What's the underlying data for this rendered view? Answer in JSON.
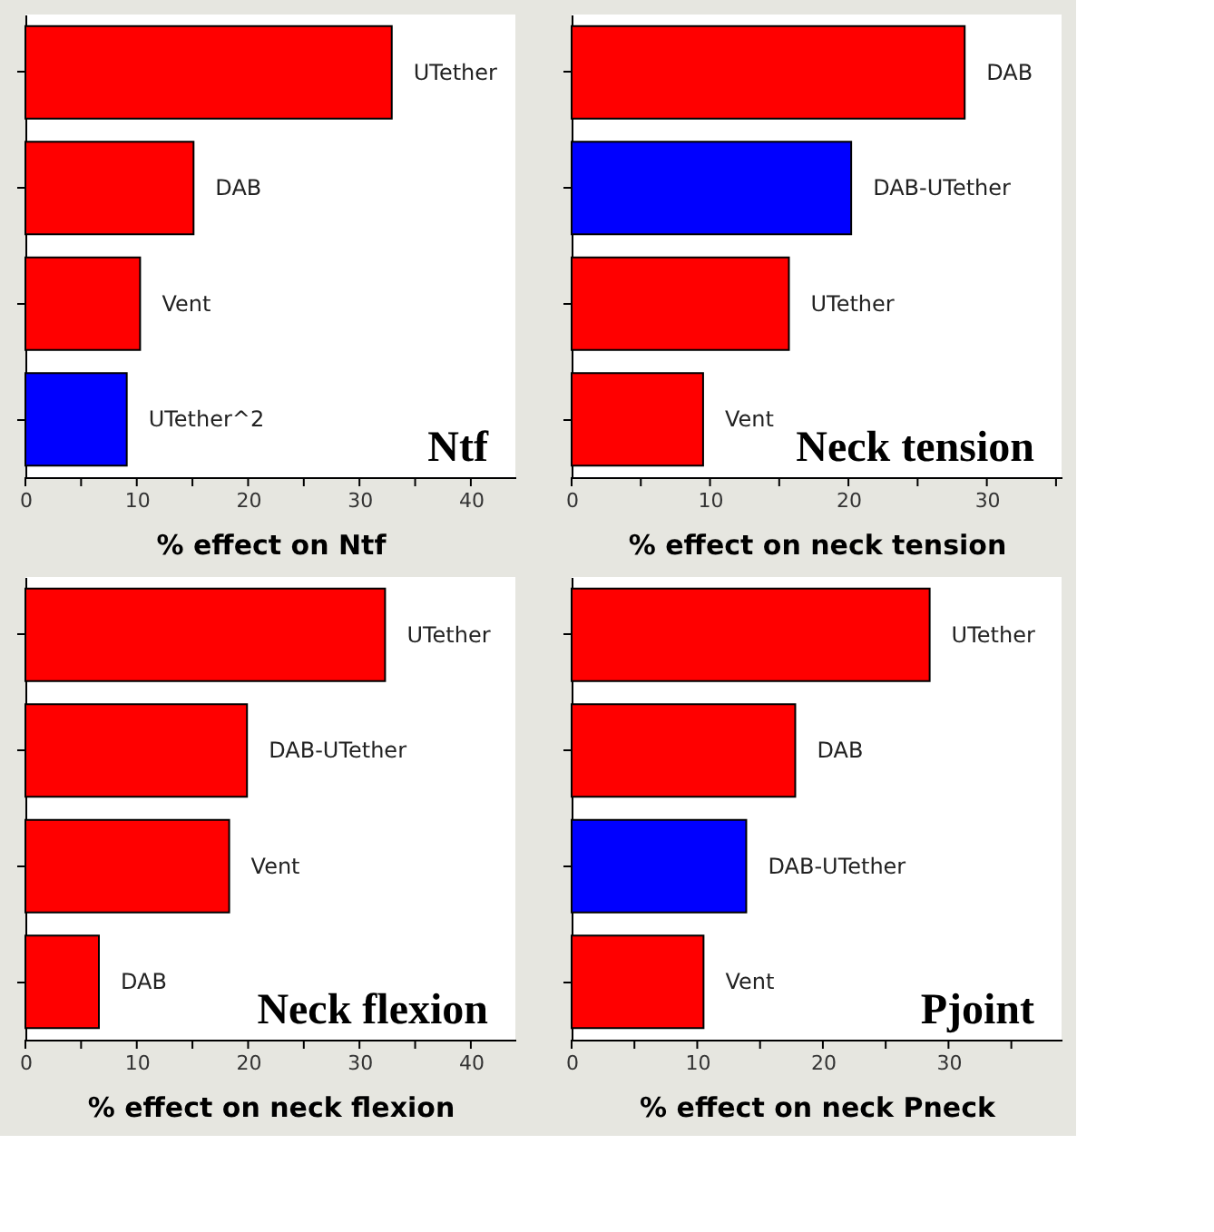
{
  "chart_data": [
    {
      "type": "bar",
      "orientation": "horizontal",
      "title": "Ntf",
      "xlabel": "% effect on Ntf",
      "categories": [
        "UTether",
        "DAB",
        "Vent",
        "UTether^2"
      ],
      "values": [
        32.9,
        15.1,
        10.3,
        9.1
      ],
      "colors": [
        "#ff0000",
        "#ff0000",
        "#ff0000",
        "#0000ff"
      ],
      "xlim": [
        0,
        44
      ],
      "xticks": [
        0,
        {
          "value": 5,
          "label": null
        },
        10,
        {
          "value": 15,
          "label": null
        },
        20,
        {
          "value": 25,
          "label": null
        },
        30,
        {
          "value": 35,
          "label": null
        },
        40
      ],
      "tick_labels": "x",
      "grid": false,
      "legend": false
    },
    {
      "type": "bar",
      "orientation": "horizontal",
      "title": "Neck tension",
      "xlabel": "% effect on neck tension",
      "categories": [
        "DAB",
        "DAB-UTether",
        "UTether",
        "Vent"
      ],
      "values": [
        28.4,
        20.2,
        15.7,
        9.5
      ],
      "colors": [
        "#ff0000",
        "#0000ff",
        "#ff0000",
        "#ff0000"
      ],
      "xlim": [
        0,
        35.4
      ],
      "xticks": [
        0,
        {
          "value": 5,
          "label": null
        },
        10,
        {
          "value": 15,
          "label": null
        },
        20,
        {
          "value": 25,
          "label": null
        },
        30,
        {
          "value": 35,
          "label": null
        }
      ],
      "tick_labels": "x",
      "grid": false,
      "legend": false
    },
    {
      "type": "bar",
      "orientation": "horizontal",
      "title": "Neck flexion",
      "xlabel": "% effect on neck flexion",
      "categories": [
        "UTether",
        "DAB-UTether",
        "Vent",
        "DAB"
      ],
      "values": [
        32.3,
        19.9,
        18.3,
        6.6
      ],
      "colors": [
        "#ff0000",
        "#ff0000",
        "#ff0000",
        "#ff0000"
      ],
      "xlim": [
        0,
        44
      ],
      "xticks": [
        0,
        {
          "value": 5,
          "label": null
        },
        10,
        {
          "value": 15,
          "label": null
        },
        20,
        {
          "value": 25,
          "label": null
        },
        30,
        {
          "value": 35,
          "label": null
        },
        40
      ],
      "tick_labels": "x",
      "grid": false,
      "legend": false
    },
    {
      "type": "bar",
      "orientation": "horizontal",
      "title": "Pjoint",
      "xlabel": "% effect on neck Pneck",
      "categories": [
        "UTether",
        "DAB",
        "DAB-UTether",
        "Vent"
      ],
      "values": [
        28.5,
        17.8,
        13.9,
        10.5
      ],
      "colors": [
        "#ff0000",
        "#ff0000",
        "#0000ff",
        "#ff0000"
      ],
      "xlim": [
        0,
        39
      ],
      "xticks": [
        0,
        {
          "value": 5,
          "label": null
        },
        10,
        {
          "value": 15,
          "label": null
        },
        20,
        {
          "value": 25,
          "label": null
        },
        30,
        {
          "value": 35,
          "label": null
        }
      ],
      "tick_labels": "x",
      "grid": false,
      "legend": false
    }
  ]
}
